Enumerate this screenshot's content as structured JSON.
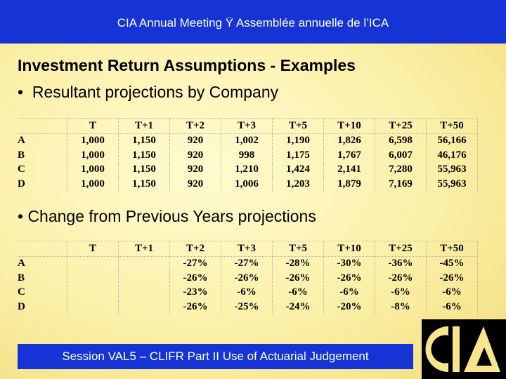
{
  "header": {
    "title": "CIA Annual Meeting Ÿ Assemblée annuelle de l’ICA"
  },
  "title": "Investment Return Assumptions - Examples",
  "bullets": [
    "•  Resultant projections by Company",
    "• Change from Previous Years projections"
  ],
  "table1": {
    "columns": [
      null,
      "T",
      "T+1",
      "T+2",
      "T+3",
      "T+5",
      "T+10",
      "T+25",
      "T+50"
    ],
    "rows": [
      [
        "A",
        "1,000",
        "1,150",
        "920",
        "1,002",
        "1,190",
        "1,826",
        "6,598",
        "56,166"
      ],
      [
        "B",
        "1,000",
        "1,150",
        "920",
        "998",
        "1,175",
        "1,767",
        "6,007",
        "46,176"
      ],
      [
        "C",
        "1,000",
        "1,150",
        "920",
        "1,210",
        "1,424",
        "2,141",
        "7,280",
        "55,963"
      ],
      [
        "D",
        "1,000",
        "1,150",
        "920",
        "1,006",
        "1,203",
        "1,879",
        "7,169",
        "55,963"
      ]
    ]
  },
  "table2": {
    "columns": [
      null,
      "T",
      "T+1",
      "T+2",
      "T+3",
      "T+5",
      "T+10",
      "T+25",
      "T+50"
    ],
    "rows": [
      [
        "A",
        null,
        null,
        "-27%",
        "-27%",
        "-28%",
        "-30%",
        "-36%",
        "-45%"
      ],
      [
        "B",
        null,
        null,
        "-26%",
        "-26%",
        "-26%",
        "-26%",
        "-26%",
        "-26%"
      ],
      [
        "C",
        null,
        null,
        "-23%",
        "-6%",
        "-6%",
        "-6%",
        "-6%",
        "-6%"
      ],
      [
        "D",
        null,
        null,
        "-26%",
        "-25%",
        "-24%",
        "-20%",
        "-8%",
        "-6%"
      ]
    ]
  },
  "footer": "Session VAL5 – CLIFR Part II Use of Actuarial Judgement"
}
